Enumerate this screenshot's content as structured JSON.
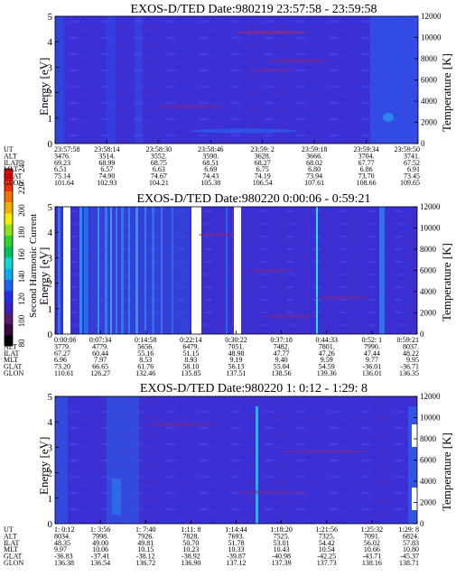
{
  "colorbar": {
    "label": "Second Harmonic Current",
    "ticks": [
      "80",
      "100",
      "120",
      "140",
      "160",
      "180",
      "200",
      "220",
      "240"
    ],
    "colors": [
      "#000000",
      "#3a0a3e",
      "#5a1a6e",
      "#3b1fc0",
      "#2030e8",
      "#1b63f0",
      "#0fa9f0",
      "#10d8d0",
      "#00c060",
      "#30d030",
      "#90e020",
      "#f0f000",
      "#f0b000",
      "#f07000",
      "#f03000",
      "#ff0000"
    ]
  },
  "chart_data": [
    {
      "type": "heatmap",
      "title": "EXOS-D/TED   Date:980219  23:57:58 - 23:59:58",
      "ylabel": "Energy [eV]",
      "ylabel_right": "Temperature [K]",
      "yticks": [
        "0",
        "1",
        "2",
        "3",
        "4",
        "5"
      ],
      "yticks_right": [
        "0",
        "2000",
        "4000",
        "6000",
        "8000",
        "10000",
        "12000"
      ],
      "ylim": [
        0,
        5
      ],
      "ylim_right": [
        0,
        12000
      ],
      "row_labels": [
        "UT",
        "ALT",
        "ILAT",
        "MLT",
        "GLAT",
        "GLON"
      ],
      "columns": [
        [
          "23:57:58",
          "3476.",
          "69.23",
          "6.51",
          "75.14",
          "101.64"
        ],
        [
          "23:58:14",
          "3514.",
          "68.99",
          "6.57",
          "74.90",
          "102.93"
        ],
        [
          "23:58:30",
          "3552.",
          "68.75",
          "6.63",
          "74.67",
          "104.21"
        ],
        [
          "23:58:46",
          "3590.",
          "68.51",
          "6.69",
          "74.43",
          "105.38"
        ],
        [
          "23:59: 2",
          "3628.",
          "68.27",
          "6.75",
          "74.19",
          "106.54"
        ],
        [
          "23:59:18",
          "3666.",
          "68.02",
          "6.80",
          "73.94",
          "107.61"
        ],
        [
          "23:59:34",
          "3704.",
          "67.77",
          "6.86",
          "73.70",
          "108.66"
        ],
        [
          "23:59:50",
          "3741.",
          "67.52",
          "6.91",
          "73.45",
          "109.65"
        ]
      ]
    },
    {
      "type": "heatmap",
      "title": "EXOS-D/TED   Date:980220  0:00:06 - 0:59:21",
      "ylabel": "Energy [eV]",
      "ylabel_right": "Temperature [K]",
      "yticks": [
        "0",
        "1",
        "2",
        "3",
        "4",
        "5"
      ],
      "yticks_right": [
        "0",
        "2000",
        "4000",
        "6000",
        "8000",
        "10000",
        "12000"
      ],
      "ylim": [
        0,
        5
      ],
      "ylim_right": [
        0,
        12000
      ],
      "row_labels": [
        "UT",
        "ALT",
        "ILAT",
        "MLT",
        "GLAT",
        "GLON"
      ],
      "columns": [
        [
          "0:00:06",
          "3779.",
          "67.27",
          "6.96",
          "73.20",
          "110.61"
        ],
        [
          "0:07:34",
          "4779.",
          "60.44",
          "7.97",
          "66.65",
          "126.27"
        ],
        [
          "0:14:58",
          "5656.",
          "55.16",
          "8.53",
          "61.76",
          "132.46"
        ],
        [
          "0:22:14",
          "6479.",
          "51.15",
          "8.93",
          "58.10",
          "135.85"
        ],
        [
          "0:30:22",
          "7051.",
          "48.98",
          "9.19",
          "56.13",
          "137.51"
        ],
        [
          "0:37:18",
          "7482.",
          "47.77",
          "9.40",
          "55.04",
          "138.56"
        ],
        [
          "0:44:33",
          "7801.",
          "47.26",
          "9.59",
          "54.59",
          "139.36"
        ],
        [
          "0:52: 1",
          "7990.",
          "47.44",
          "9.77",
          "-36.01",
          "136.01"
        ],
        [
          "0:59:21",
          "8037.",
          "48.22",
          "9.95",
          "-36.71",
          "136.35"
        ]
      ]
    },
    {
      "type": "heatmap",
      "title": "EXOS-D/TED   Date:980220  1: 0:12 - 1:29: 8",
      "ylabel": "Energy [eV]",
      "ylabel_right": "Temperature [K]",
      "yticks": [
        "0",
        "1",
        "2",
        "3",
        "4",
        "5"
      ],
      "yticks_right": [
        "0",
        "2000",
        "4000",
        "6000",
        "8000",
        "10000",
        "12000"
      ],
      "ylim": [
        0,
        5
      ],
      "ylim_right": [
        0,
        12000
      ],
      "row_labels": [
        "UT",
        "ALT",
        "ILAT",
        "MLT",
        "GLAT",
        "GLON"
      ],
      "columns": [
        [
          "1: 0:12",
          "8034.",
          "48.35",
          "9.97",
          "-36.83",
          "136.38"
        ],
        [
          "1: 3:56",
          "7998.",
          "49.00",
          "10.06",
          "-37.41",
          "136.54"
        ],
        [
          "1: 7:40",
          "7926.",
          "49.81",
          "10.15",
          "-38.12",
          "136.72"
        ],
        [
          "1:11: 8",
          "7828.",
          "50.70",
          "10.23",
          "-38.92",
          "136.90"
        ],
        [
          "1:14:44",
          "7693.",
          "51.78",
          "10.33",
          "-39.87",
          "137.12"
        ],
        [
          "1:18:20",
          "7525.",
          "53.01",
          "10.43",
          "-40.98",
          "137.39"
        ],
        [
          "1:21:56",
          "7325.",
          "54.42",
          "10.54",
          "-42.25",
          "137.73"
        ],
        [
          "1:25:32",
          "7091.",
          "56.02",
          "10.66",
          "-43.71",
          "138.16"
        ],
        [
          "1:29: 8",
          "6824.",
          "57.83",
          "10.80",
          "-45.37",
          "138.71"
        ]
      ]
    }
  ]
}
